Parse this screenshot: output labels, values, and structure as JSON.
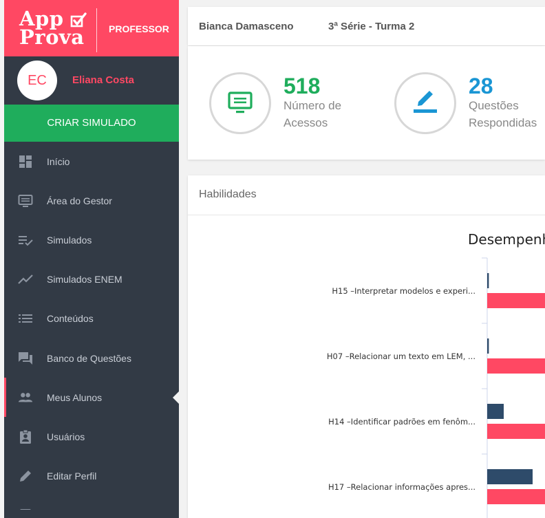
{
  "brand": {
    "logo_line1": "App",
    "logo_line2": "Prova",
    "role": "PROFESSOR"
  },
  "user": {
    "initials": "EC",
    "name": "Eliana Costa"
  },
  "sidebar": {
    "cta_label": "CRIAR SIMULADO",
    "items": [
      {
        "label": "Início",
        "icon": "dashboard-icon"
      },
      {
        "label": "Área do Gestor",
        "icon": "monitor-icon"
      },
      {
        "label": "Simulados",
        "icon": "checklist-icon"
      },
      {
        "label": "Simulados ENEM",
        "icon": "trend-icon"
      },
      {
        "label": "Conteúdos",
        "icon": "list-icon"
      },
      {
        "label": "Banco de Questões",
        "icon": "chat-icon"
      },
      {
        "label": "Meus Alunos",
        "icon": "people-icon",
        "active": true
      },
      {
        "label": "Usuários",
        "icon": "badge-icon"
      },
      {
        "label": "Editar Perfil",
        "icon": "pencil-icon"
      }
    ]
  },
  "header": {
    "student_name": "Bianca Damasceno",
    "class_name": "3ª Série - Turma 2"
  },
  "stats": [
    {
      "value": "518",
      "label_line1": "Número de",
      "label_line2": "Acessos",
      "color": "#1fad5c",
      "icon": "monitor-icon"
    },
    {
      "value": "28",
      "label_line1": "Questões",
      "label_line2": "Respondidas",
      "color": "#1a96d4",
      "icon": "pencil-icon"
    }
  ],
  "habilidades": {
    "title": "Habilidades"
  },
  "colors": {
    "accent": "#ff4863",
    "sidebar_bg": "#323a45",
    "cta_green": "#1fad5c",
    "series_dark": "#2e4b6a",
    "series_pink": "#ff4863"
  },
  "chart_data": {
    "type": "bar",
    "orientation": "horizontal",
    "title": "Desempenho",
    "categories": [
      "H15 –Interpretar modelos e experi...",
      "H07 –Relacionar um texto em LEM, ...",
      "H14 –Identificar padrões em fenôm...",
      "H17 –Relacionar informações apres..."
    ],
    "series": [
      {
        "values": [
          2,
          2,
          20,
          55
        ]
      },
      {
        "values": [
          90,
          90,
          90,
          90
        ]
      }
    ],
    "xlim": [
      0,
      100
    ]
  }
}
